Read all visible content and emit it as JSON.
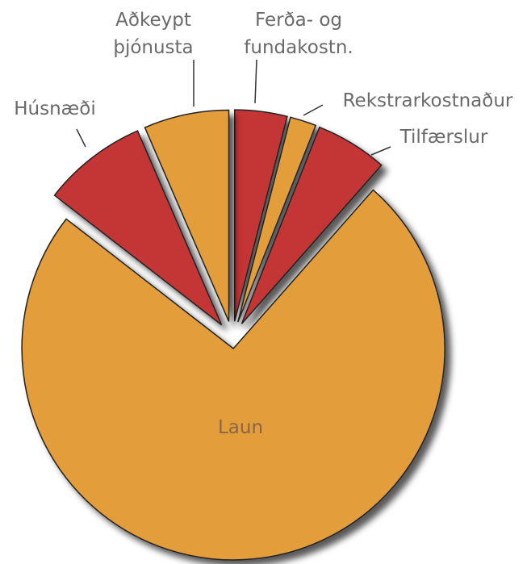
{
  "chart_data": {
    "type": "pie",
    "categories": [
      "Ferða- og fundakostn.",
      "Rekstrarkostnaður",
      "Tilfærslur",
      "Laun",
      "Húsnæði",
      "Aðkeypt þjónusta"
    ],
    "values": [
      4,
      2,
      5.5,
      74,
      8,
      6.5
    ],
    "colors": [
      "#c43536",
      "#e39d3a",
      "#c43536",
      "#e39d3a",
      "#c43536",
      "#e39d3a"
    ]
  }
}
